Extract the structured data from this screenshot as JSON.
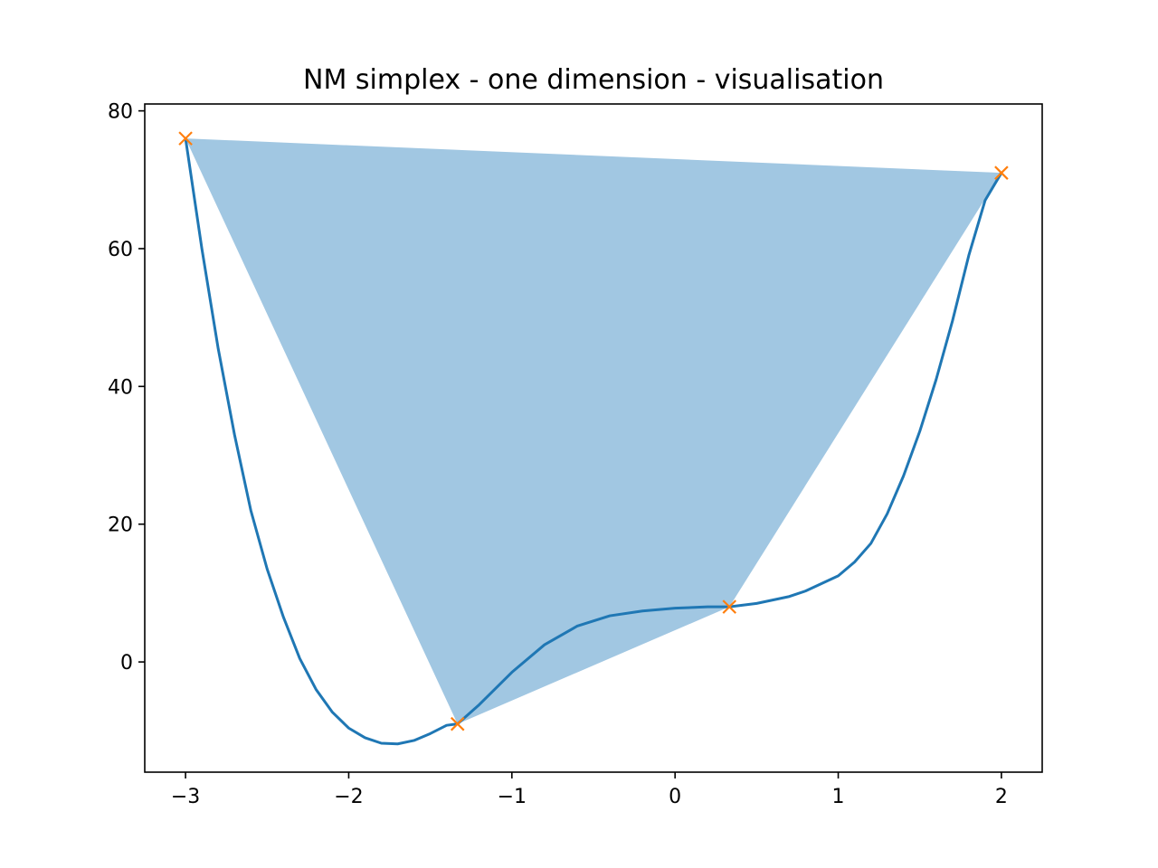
{
  "chart_data": {
    "type": "line",
    "title": "NM simplex - one dimension - visualisation",
    "xlabel": "",
    "ylabel": "",
    "xlim": [
      -3.25,
      2.25
    ],
    "ylim": [
      -16,
      81
    ],
    "x_ticks": [
      -3,
      -2,
      -1,
      0,
      1,
      2
    ],
    "x_tick_labels": [
      "−3",
      "−2",
      "−1",
      "0",
      "1",
      "2"
    ],
    "y_ticks": [
      0,
      20,
      40,
      60,
      80
    ],
    "y_tick_labels": [
      "0",
      "20",
      "40",
      "60",
      "80"
    ],
    "grid": false,
    "series": [
      {
        "kind": "line",
        "color": "#1f77b4",
        "x": [
          -3.0,
          -2.9,
          -2.8,
          -2.7,
          -2.6,
          -2.5,
          -2.4,
          -2.3,
          -2.2,
          -2.1,
          -2.0,
          -1.9,
          -1.8,
          -1.7,
          -1.6,
          -1.5,
          -1.4,
          -1.333,
          -1.2,
          -1.0,
          -0.8,
          -0.6,
          -0.4,
          -0.2,
          0.0,
          0.2,
          0.333,
          0.5,
          0.7,
          0.8,
          1.0,
          1.1,
          1.2,
          1.3,
          1.4,
          1.5,
          1.6,
          1.7,
          1.8,
          1.9,
          2.0
        ],
        "y": [
          76,
          60,
          45.5,
          33,
          22,
          13.5,
          6.5,
          0.5,
          -4,
          -7.3,
          -9.6,
          -11,
          -11.8,
          -11.9,
          -11.4,
          -10.4,
          -9.2,
          -9,
          -6.2,
          -1.5,
          2.5,
          5.2,
          6.7,
          7.4,
          7.8,
          8,
          8,
          8.5,
          9.5,
          10.3,
          12.5,
          14.5,
          17.2,
          21.5,
          27,
          33.5,
          41,
          49.5,
          59,
          67,
          71
        ]
      }
    ],
    "simplex_polygon": {
      "color": "#a1c7e2",
      "x": [
        -3.0,
        2.0,
        0.333,
        -1.333
      ],
      "y": [
        76,
        71,
        8,
        -9
      ]
    },
    "vertices": {
      "marker": "x",
      "color": "#ff7f0e",
      "x": [
        -3.0,
        -1.333,
        0.333,
        2.0
      ],
      "y": [
        76,
        -9,
        8,
        71
      ]
    }
  }
}
